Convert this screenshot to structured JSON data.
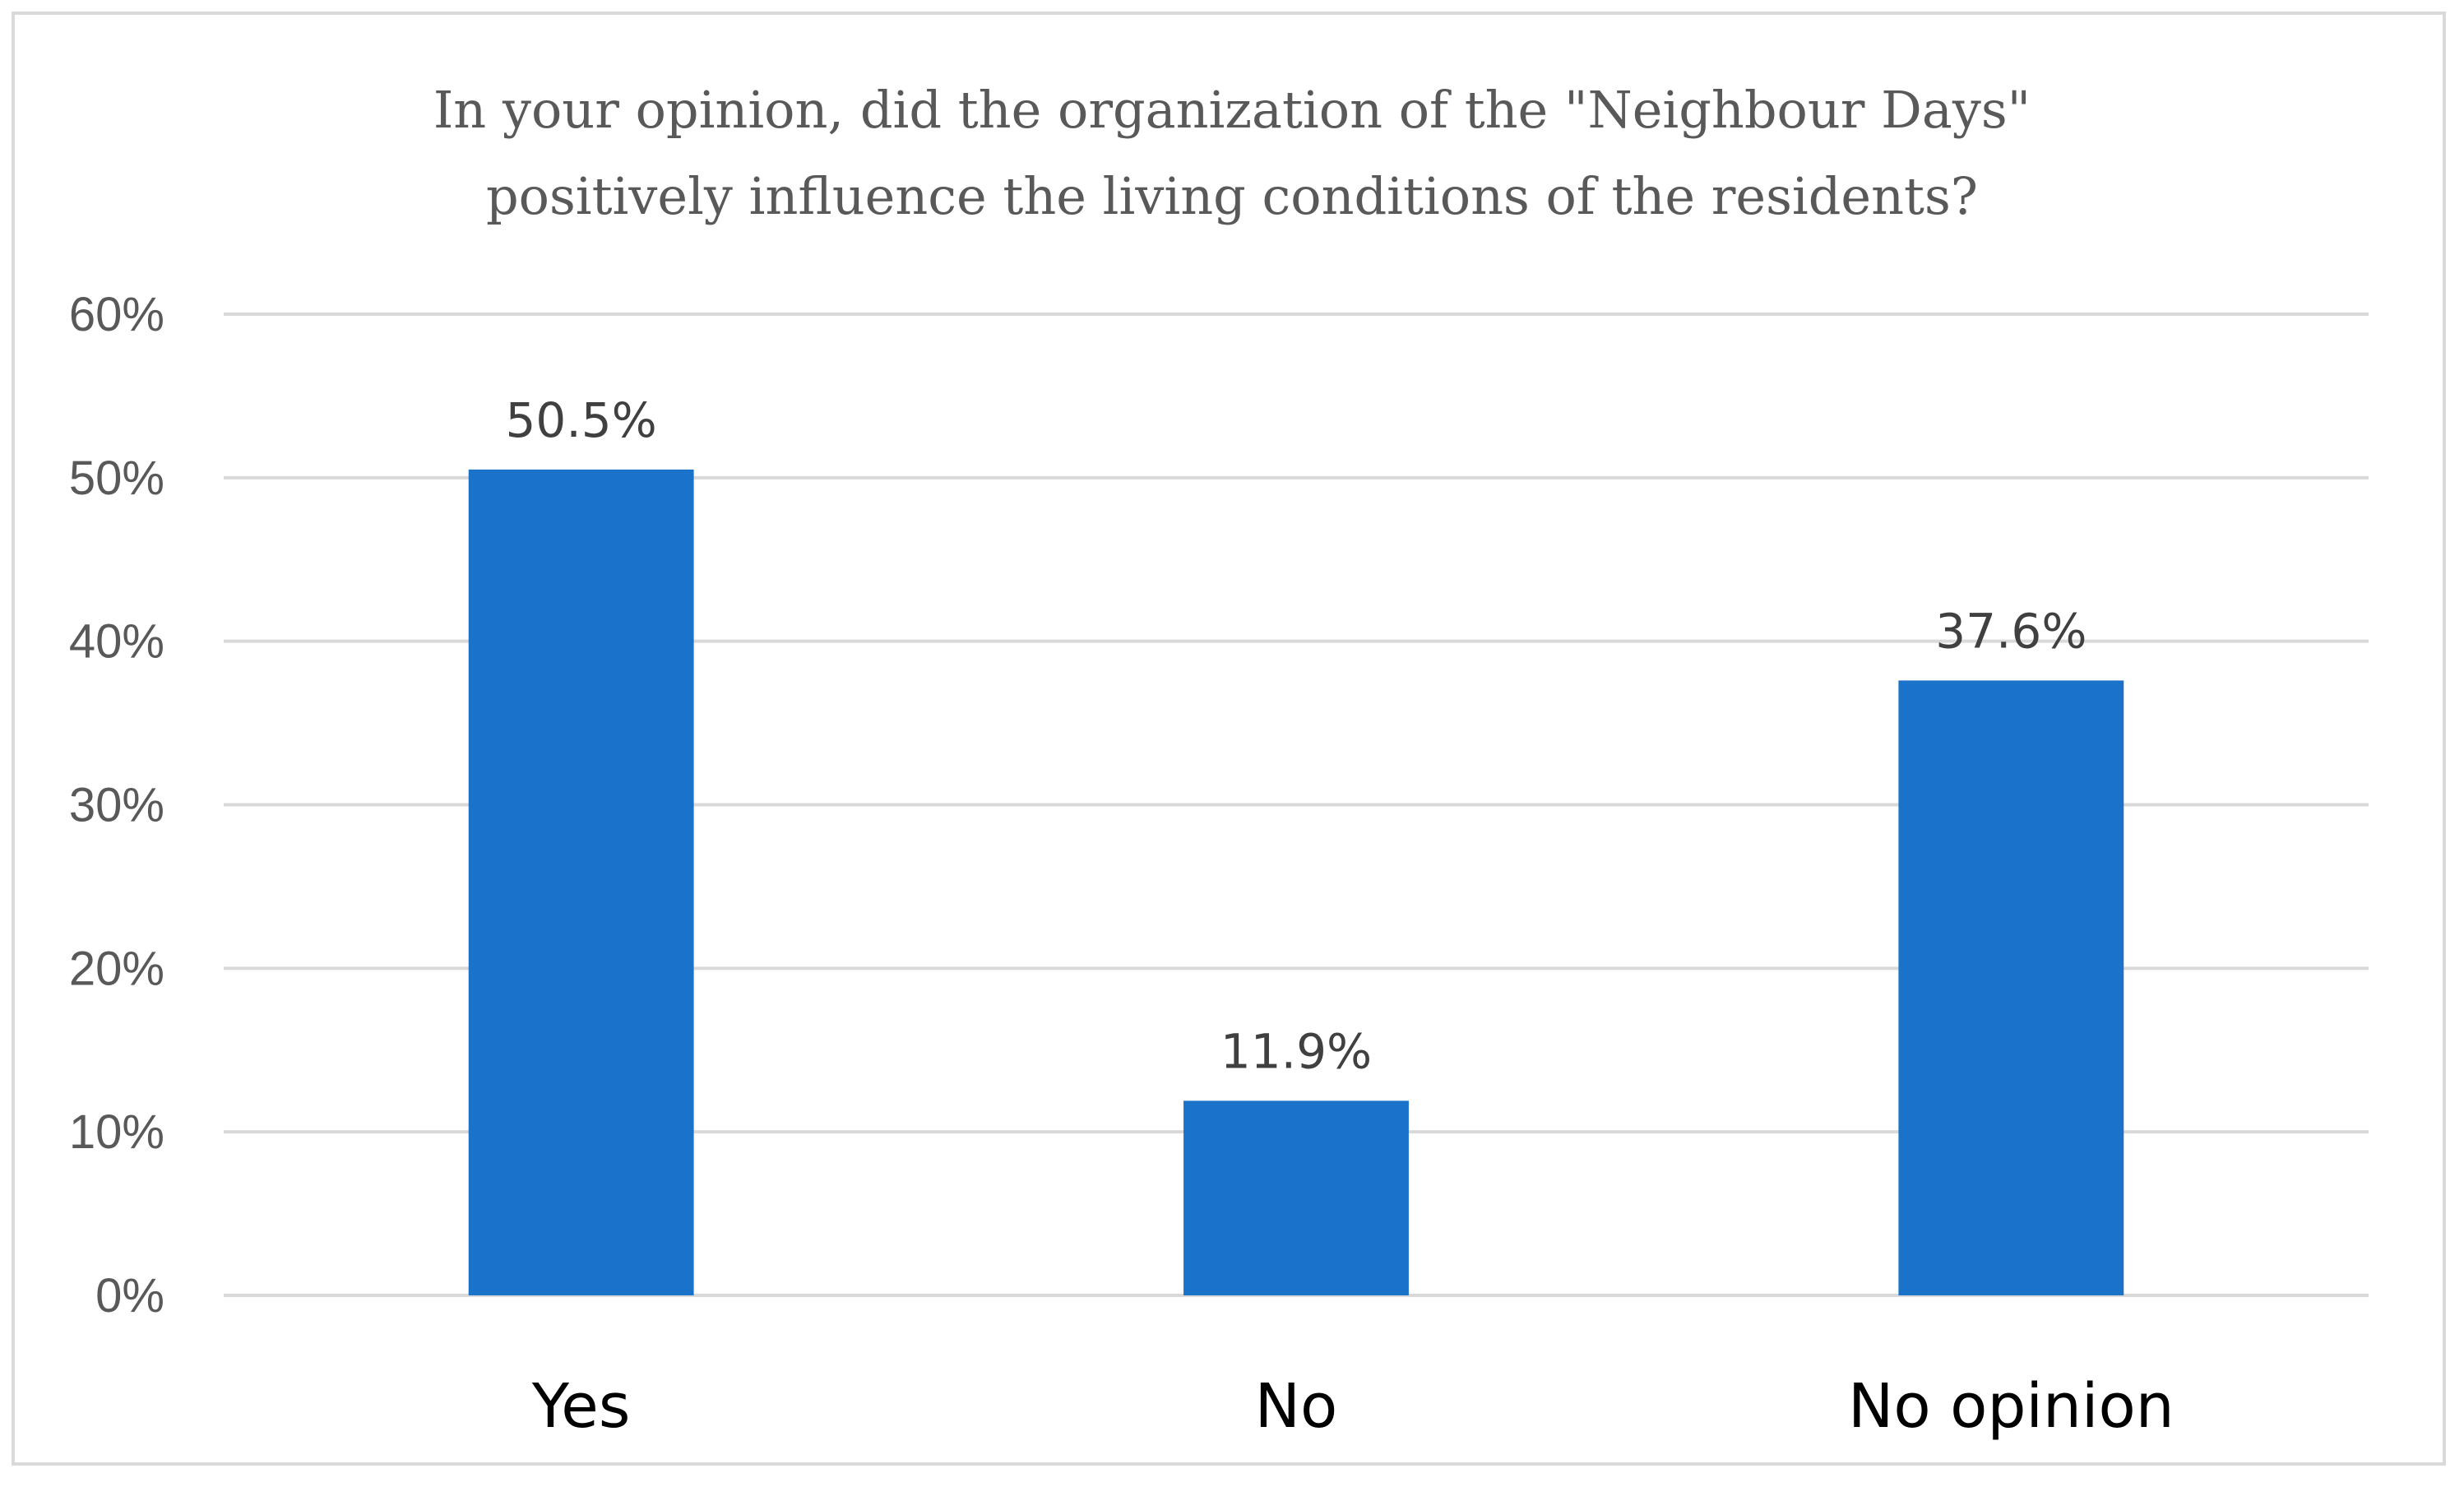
{
  "chart_data": {
    "type": "bar",
    "title_lines": [
      "In your opinion, did the organization of the \"Neighbour Days\"",
      "positively influence the living conditions of the residents?"
    ],
    "categories": [
      "Yes",
      "No",
      "No opinion"
    ],
    "values": [
      50.5,
      11.9,
      37.6
    ],
    "data_labels": [
      "50.5%",
      "11.9%",
      "37.6%"
    ],
    "ylim": [
      0,
      60
    ],
    "yticks": [
      0,
      10,
      20,
      30,
      40,
      50,
      60
    ],
    "ytick_labels": [
      "0%",
      "10%",
      "20%",
      "30%",
      "40%",
      "50%",
      "60%"
    ],
    "xlabel": "",
    "ylabel": "",
    "grid": true,
    "legend": "none",
    "colors": {
      "bar": "#1a73c9",
      "grid": "#d9d9d9",
      "frame": "#d9d9d9"
    }
  }
}
